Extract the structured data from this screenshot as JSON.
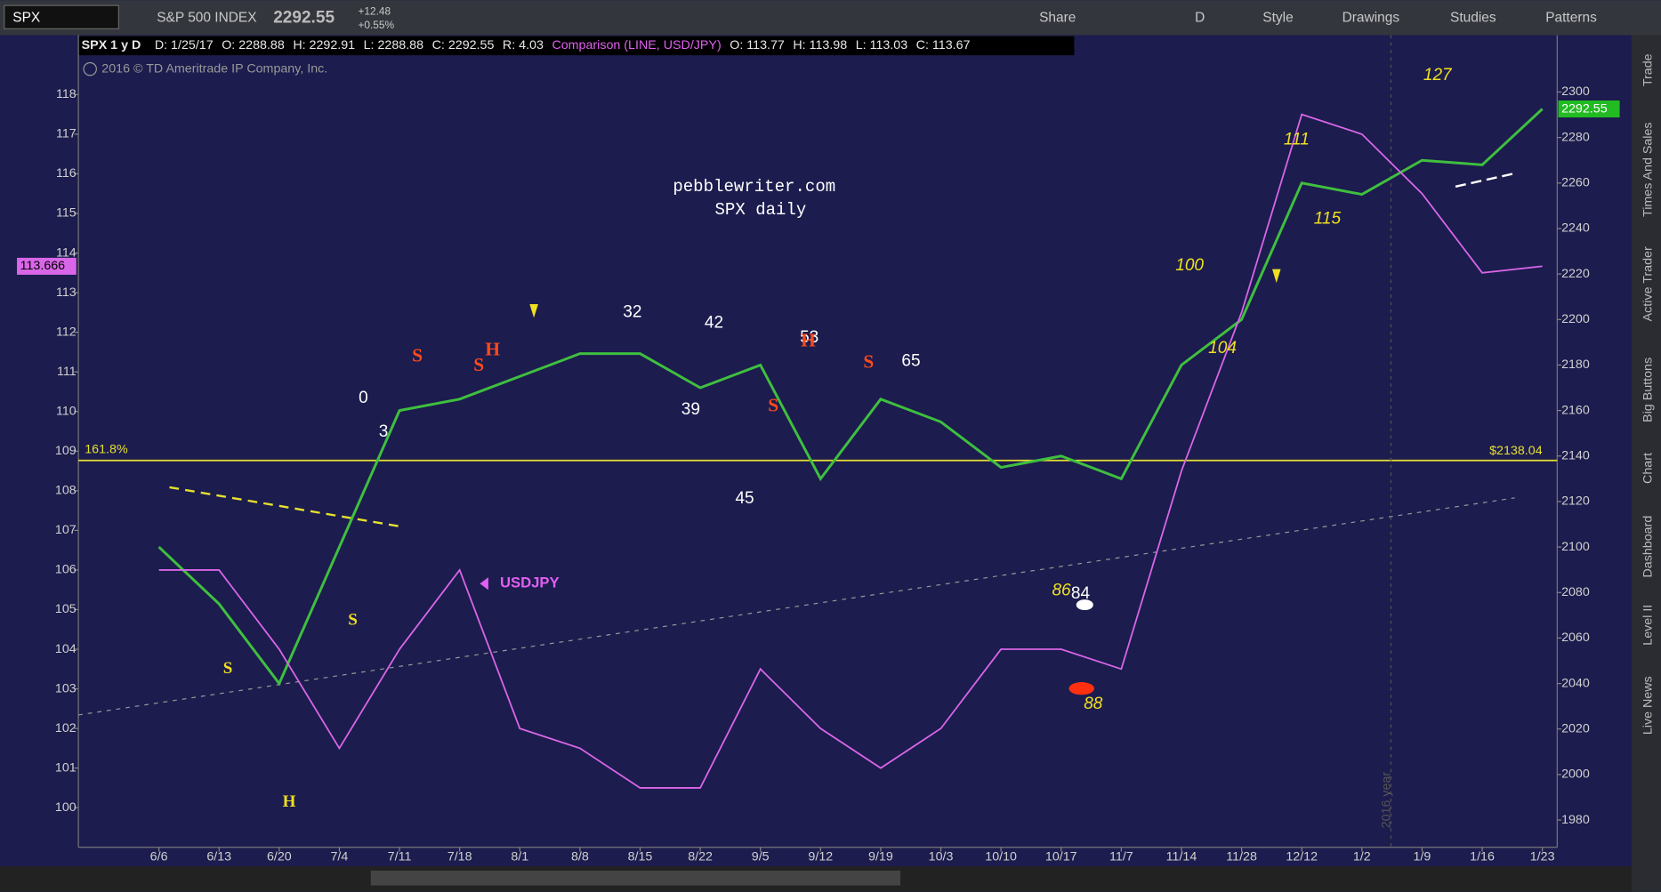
{
  "toolbar": {
    "description": "S&P 500 INDEX",
    "last": "2292.55",
    "change": "+12.48",
    "change_pct": "+0.55%",
    "buttons": [
      "Share",
      "D",
      "Style",
      "Drawings",
      "Studies",
      "Patterns"
    ]
  },
  "header": {
    "study": "SPX 1 y D",
    "fields": [
      "D: 1/25/17",
      "O: 2288.88",
      "H: 2292.91",
      "L: 2288.88",
      "C: 2292.55",
      "R: 4.03"
    ],
    "comparison": "Comparison (LINE, USD/JPY)",
    "comparison_fields": [
      "O: 113.77",
      "H: 113.98",
      "L: 113.03",
      "C: 113.67"
    ],
    "copyright": "2016 © TD Ameritrade IP Company, Inc."
  },
  "side_tabs": [
    "Trade",
    "Times And Sales",
    "Active Trader",
    "Big Buttons",
    "Chart",
    "Dashboard",
    "Level II",
    "Live News"
  ],
  "chart_data": {
    "type": "line",
    "title": "pebblewriter.com",
    "subtitle": "SPX daily",
    "categories": [
      "6/6",
      "6/13",
      "6/20",
      "7/4",
      "7/11",
      "7/18",
      "8/1",
      "8/8",
      "8/15",
      "8/22",
      "9/5",
      "9/12",
      "9/19",
      "10/3",
      "10/10",
      "10/17",
      "11/7",
      "11/14",
      "11/28",
      "12/12",
      "1/2",
      "1/9",
      "1/16",
      "1/23"
    ],
    "series": [
      {
        "name": "SPX",
        "color": "#3fbf3f",
        "values": [
          2100,
          2075,
          2040,
          2100,
          2160,
          2165,
          2175,
          2185,
          2185,
          2170,
          2180,
          2130,
          2165,
          2155,
          2135,
          2140,
          2130,
          2180,
          2200,
          2260,
          2255,
          2270,
          2268,
          2292.55
        ]
      },
      {
        "name": "USDJPY",
        "color": "#d966e8",
        "axis": "y2",
        "values": [
          106,
          106,
          104,
          101.5,
          104,
          106,
          102,
          101.5,
          100.5,
          100.5,
          103.5,
          102,
          101,
          102,
          104,
          104,
          103.5,
          108.5,
          112.5,
          117.5,
          117,
          115.5,
          113.5,
          113.666
        ]
      }
    ],
    "ylim": [
      1968,
      2325
    ],
    "yticks": [
      1980,
      2000,
      2020,
      2040,
      2060,
      2080,
      2100,
      2120,
      2140,
      2160,
      2180,
      2200,
      2220,
      2240,
      2260,
      2280,
      2300
    ],
    "y2lim": [
      99,
      119.5
    ],
    "y2ticks": [
      100,
      101,
      102,
      103,
      104,
      105,
      106,
      107,
      108,
      109,
      110,
      111,
      112,
      113,
      114,
      115,
      116,
      117,
      118
    ],
    "reference_line": {
      "value": 2138.04,
      "label": "$2138.04",
      "fib_label": "161.8%"
    },
    "year_marker": "2016 year",
    "annotations": [
      "0",
      "3",
      "32",
      "42",
      "39",
      "45",
      "53",
      "65",
      "86",
      "84",
      "88",
      "100",
      "104",
      "111",
      "115",
      "127",
      "H",
      "S",
      "S",
      "S",
      "H",
      "S",
      "S",
      "S",
      "H"
    ]
  }
}
